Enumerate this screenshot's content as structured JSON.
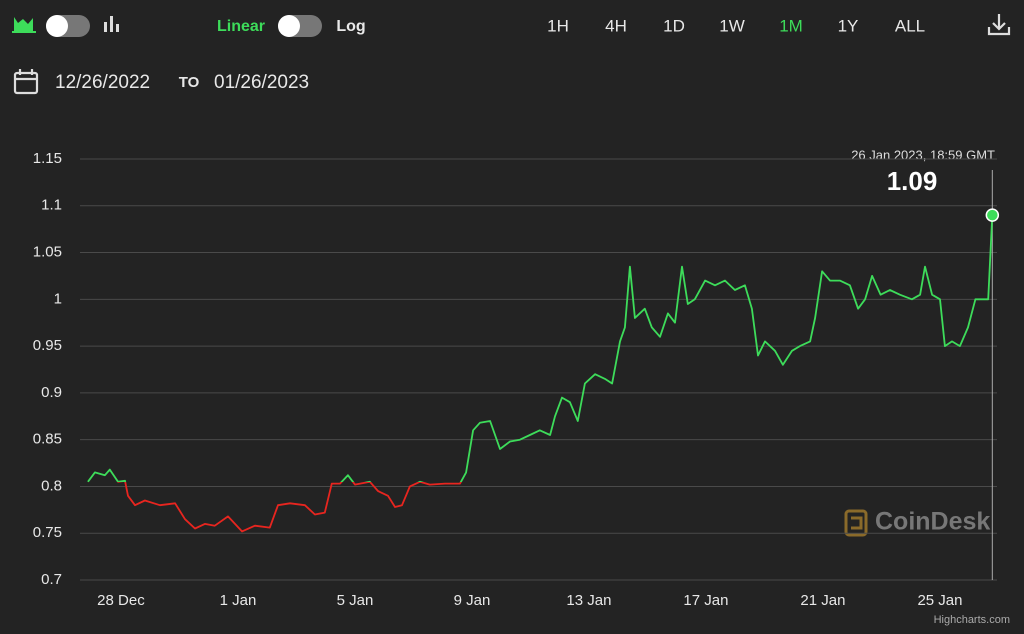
{
  "toolbar": {
    "scale_linear": "Linear",
    "scale_log": "Log",
    "ranges": [
      "1H",
      "4H",
      "1D",
      "1W",
      "1M",
      "1Y",
      "ALL"
    ]
  },
  "date_range": {
    "from": "12/26/2022",
    "to_label": "TO",
    "to": "01/26/2023"
  },
  "watermark": "CoinDesk",
  "credits": "Highcharts.com",
  "chart_data": {
    "type": "line",
    "x": [
      0.87,
      1.11,
      1.45,
      1.62,
      1.9,
      2.14,
      2.24,
      2.48,
      2.82,
      3.33,
      3.85,
      4.19,
      4.53,
      4.87,
      5.21,
      5.66,
      5.9,
      6.14,
      6.58,
      7.09,
      7.37,
      7.78,
      8.29,
      8.63,
      8.97,
      9.21,
      9.49,
      9.76,
      10.0,
      10.51,
      10.79,
      11.13,
      11.37,
      11.61,
      11.88,
      12.22,
      12.56,
      13.08,
      13.59,
      13.8,
      14.04,
      14.27,
      14.62,
      14.96,
      15.3,
      15.64,
      15.98,
      16.32,
      16.67,
      16.84,
      17.08,
      17.35,
      17.62,
      17.86,
      18.21,
      18.55,
      18.79,
      19.06,
      19.23,
      19.4,
      19.57,
      19.91,
      20.15,
      20.43,
      20.7,
      20.94,
      21.18,
      21.38,
      21.62,
      21.97,
      22.31,
      22.65,
      22.99,
      23.33,
      23.57,
      23.78,
      24.02,
      24.36,
      24.63,
      24.94,
      25.21,
      25.56,
      25.73,
      25.97,
      26.24,
      26.58,
      26.92,
      27.2,
      27.44,
      27.68,
      27.97,
      28.29,
      28.63,
      29.04,
      29.32,
      29.49,
      29.73,
      30.0,
      30.17,
      30.41,
      30.68,
      30.96,
      31.21,
      31.44,
      31.65,
      31.79
    ],
    "values": [
      0.805,
      0.815,
      0.812,
      0.818,
      0.805,
      0.806,
      0.79,
      0.78,
      0.785,
      0.78,
      0.782,
      0.765,
      0.755,
      0.76,
      0.758,
      0.768,
      0.76,
      0.752,
      0.758,
      0.756,
      0.78,
      0.782,
      0.78,
      0.77,
      0.772,
      0.803,
      0.803,
      0.812,
      0.802,
      0.805,
      0.795,
      0.79,
      0.778,
      0.78,
      0.8,
      0.805,
      0.802,
      0.803,
      0.803,
      0.815,
      0.86,
      0.868,
      0.87,
      0.84,
      0.848,
      0.85,
      0.855,
      0.86,
      0.855,
      0.875,
      0.895,
      0.89,
      0.87,
      0.91,
      0.92,
      0.915,
      0.91,
      0.955,
      0.97,
      1.035,
      0.98,
      0.99,
      0.97,
      0.96,
      0.985,
      0.975,
      1.035,
      0.995,
      1.0,
      1.02,
      1.015,
      1.02,
      1.01,
      1.015,
      0.99,
      0.94,
      0.955,
      0.945,
      0.93,
      0.945,
      0.95,
      0.955,
      0.98,
      1.03,
      1.02,
      1.02,
      1.015,
      0.99,
      1.0,
      1.025,
      1.005,
      1.01,
      1.005,
      1.0,
      1.005,
      1.035,
      1.005,
      1.0,
      0.95,
      0.955,
      0.95,
      0.97,
      1.0,
      1.0,
      1.0,
      1.09
    ],
    "color": "#3ddc5a",
    "negative_color": "#e8251f",
    "threshold": 0.805,
    "xlim": [
      0.6,
      31.95
    ],
    "xticks": [
      {
        "value": 2,
        "label": "28 Dec"
      },
      {
        "value": 6,
        "label": "1 Jan"
      },
      {
        "value": 10,
        "label": "5 Jan"
      },
      {
        "value": 14,
        "label": "9 Jan"
      },
      {
        "value": 18,
        "label": "13 Jan"
      },
      {
        "value": 22,
        "label": "17 Jan"
      },
      {
        "value": 26,
        "label": "21 Jan"
      },
      {
        "value": 30,
        "label": "25 Jan"
      }
    ],
    "ylim": [
      0.7,
      1.15
    ],
    "yticks": [
      0.7,
      0.75,
      0.8,
      0.85,
      0.9,
      0.95,
      1,
      1.05,
      1.1,
      1.15
    ],
    "grid": true,
    "tooltip": {
      "date": "26 Jan 2023, 18:59 GMT"
    }
  }
}
